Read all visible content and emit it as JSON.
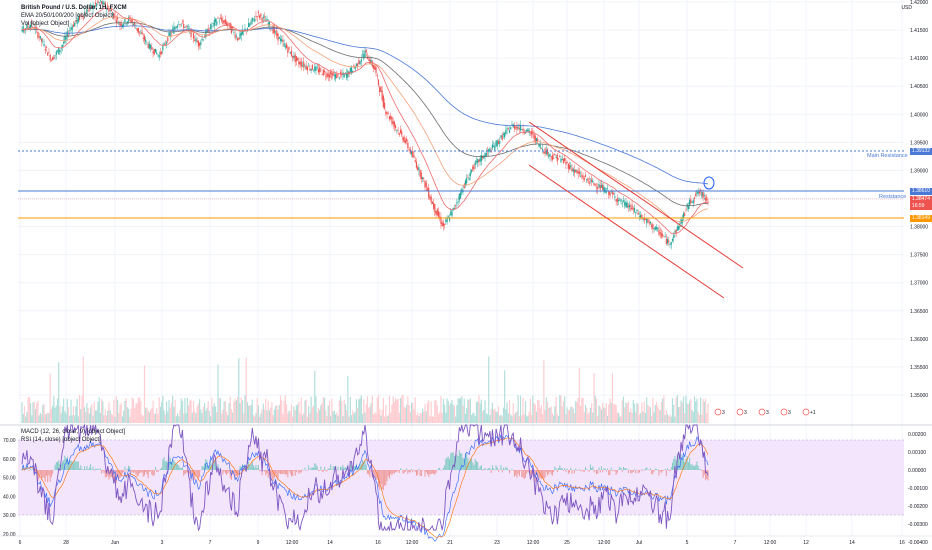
{
  "legend": {
    "symbol": "British Pound / U.S. Dollar, 1H, FXCM",
    "ema": "EMA 20/50/100/200 [object Object]",
    "vol": "Vol [object Object]",
    "macd": "MACD (12, 26, close, 9) [object Object]",
    "rsi": "RSI (14, close) [object Object]"
  },
  "price_axis": {
    "currency": "USD",
    "ticks": [
      "1.42000",
      "1.41500",
      "1.41000",
      "1.40500",
      "1.40000",
      "1.39500",
      "1.39000",
      "1.38500",
      "1.38000",
      "1.37500",
      "1.37000",
      "1.36500",
      "1.36000",
      "1.35500",
      "1.35000"
    ]
  },
  "indicator_axis_left": [
    "70.00",
    "60.00",
    "50.00",
    "40.00",
    "30.00",
    "20.00"
  ],
  "indicator_axis_right": [
    "0.00200",
    "0.00100",
    "0.00000",
    "-0.00100",
    "-0.00200",
    "-0.00300",
    "-0.00400"
  ],
  "time_axis": [
    "6",
    "28",
    "Jun",
    "3",
    "7",
    "9",
    "12:00",
    "14",
    "16",
    "12:00",
    "21",
    "23",
    "12:00",
    "25",
    "12:00",
    "Jul",
    "5",
    "7",
    "12:00",
    "12",
    "14",
    "16"
  ],
  "levels": {
    "main_resistance": {
      "label": "Main Resistance",
      "value": "1.39132",
      "color": "#4a78d6"
    },
    "resistance": {
      "label": "Resistance",
      "value": "1.38610",
      "color": "#4a78d6"
    },
    "current": {
      "value": "1.38474",
      "sub": "16:59",
      "color": "#ef5350"
    },
    "support": {
      "value": "1.38149",
      "color": "#ff9800"
    }
  },
  "event_markers": [
    "3",
    "3",
    "3",
    "3",
    "+1"
  ],
  "colors": {
    "up": "#26a69a",
    "down": "#ef5350",
    "ema20": "#ef6c6c",
    "ema50": "#f4a27a",
    "ema100": "#6e6e6e",
    "ema200": "#4a78d6",
    "channel": "#e53935",
    "rsi": "#7e57c2",
    "rsi_band": "#e8d5f5",
    "macd": "#2962ff",
    "signal": "#ff6d00"
  },
  "chart_data": {
    "type": "line",
    "title": "British Pound / U.S. Dollar, 1H, FXCM",
    "ylim": [
      1.347,
      1.4205
    ],
    "series": [
      {
        "name": "Close",
        "values": [
          1.415,
          1.4162,
          1.413,
          1.4098,
          1.412,
          1.4155,
          1.4175,
          1.419,
          1.42,
          1.4185,
          1.416,
          1.417,
          1.4145,
          1.412,
          1.4105,
          1.414,
          1.4165,
          1.415,
          1.4125,
          1.415,
          1.417,
          1.416,
          1.4135,
          1.4155,
          1.4178,
          1.4165,
          1.414,
          1.4118,
          1.4095,
          1.4085,
          1.408,
          1.4072,
          1.4068,
          1.407,
          1.4085,
          1.411,
          1.408,
          1.401,
          1.398,
          1.3955,
          1.392,
          1.388,
          1.3835,
          1.38,
          1.383,
          1.387,
          1.3905,
          1.3925,
          1.394,
          1.396,
          1.398,
          1.3975,
          1.3965,
          1.394,
          1.3925,
          1.392,
          1.3905,
          1.389,
          1.388,
          1.387,
          1.386,
          1.3845,
          1.3835,
          1.382,
          1.3805,
          1.379,
          1.377,
          1.38,
          1.384,
          1.3862,
          1.3848
        ]
      }
    ]
  }
}
